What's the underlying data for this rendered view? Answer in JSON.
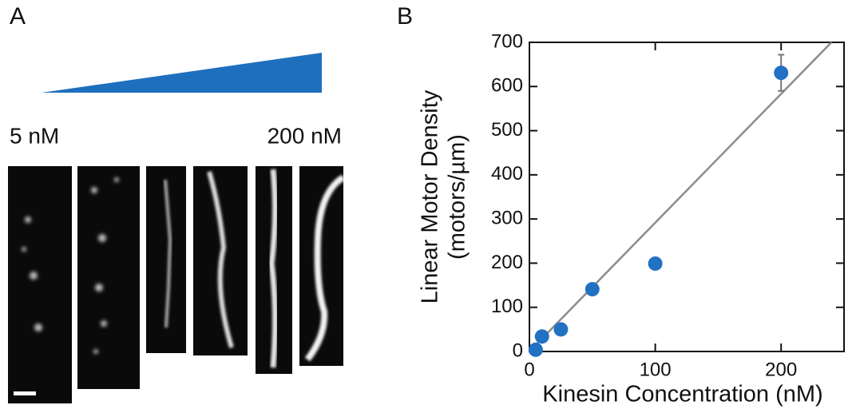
{
  "panels": {
    "a_label": "A",
    "b_label": "B"
  },
  "panel_a": {
    "low_label": "5 nM",
    "high_label": "200 nM"
  },
  "chart_data": {
    "type": "scatter",
    "xlabel": "Kinesin Concentration (nM)",
    "ylabel": [
      "Linear Motor Density",
      "(motors/µm)"
    ],
    "x": [
      5,
      10,
      25,
      50,
      100,
      200
    ],
    "values": [
      4,
      34,
      50,
      141,
      199,
      631
    ],
    "errors": [
      4,
      6,
      6,
      8,
      12,
      41
    ],
    "color": "#2271c3",
    "fit_line": {
      "x": [
        0,
        240
      ],
      "y": [
        0,
        700
      ],
      "color": "#8c8c8c"
    },
    "xlim": [
      0,
      250
    ],
    "ylim": [
      0,
      700
    ],
    "xticks": [
      0,
      100,
      200
    ],
    "yticks": [
      0,
      100,
      200,
      300,
      400,
      500,
      600,
      700
    ]
  }
}
